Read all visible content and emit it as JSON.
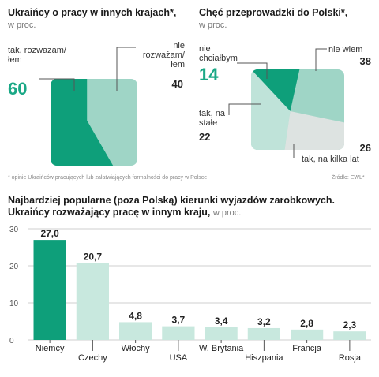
{
  "chart_data": [
    {
      "type": "area",
      "title": "Ukraińcy o pracy w innych krajach*,",
      "subtitle": "w proc.",
      "categories": [
        "tak, rozważam/łem",
        "nie rozważam/łem"
      ],
      "values": [
        60,
        40
      ],
      "colors": [
        "#0e9f7a",
        "#9fd5c6"
      ],
      "footnote": "* opinie Ukraińców pracujących lub załatwiających formalności do pracy w Polsce"
    },
    {
      "type": "area",
      "title": "Chęć przeprowadzki do Polski*,",
      "subtitle": "w proc.",
      "categories": [
        "nie chciałbym",
        "nie wiem",
        "tak, na kilka lat",
        "tak, na stałe"
      ],
      "values": [
        14,
        38,
        26,
        22
      ],
      "colors": [
        "#0e9f7a",
        "#9fd5c6",
        "#dde3e1",
        "#bfe3d9"
      ],
      "source": "Źródło: EWL*"
    },
    {
      "type": "bar",
      "title": "Najbardziej popularne (poza Polską) kierunki wyjazdów zarobkowych.",
      "title2": "Ukraińcy rozważający pracę w innym kraju,",
      "subtitle": "w proc.",
      "categories": [
        "Niemcy",
        "Czechy",
        "Włochy",
        "USA",
        "W. Brytania",
        "Hiszpania",
        "Francja",
        "Rosja"
      ],
      "values": [
        27.0,
        20.7,
        4.8,
        3.7,
        3.4,
        3.2,
        2.8,
        2.3
      ],
      "value_labels": [
        "27,0",
        "20,7",
        "4,8",
        "3,7",
        "3,4",
        "3,2",
        "2,8",
        "2,3"
      ],
      "ylim": [
        0,
        30
      ],
      "yticks": [
        "0",
        "10",
        "20",
        "30"
      ],
      "colors": [
        "#0e9f7a",
        "#c8e8de"
      ],
      "grid": true
    }
  ]
}
